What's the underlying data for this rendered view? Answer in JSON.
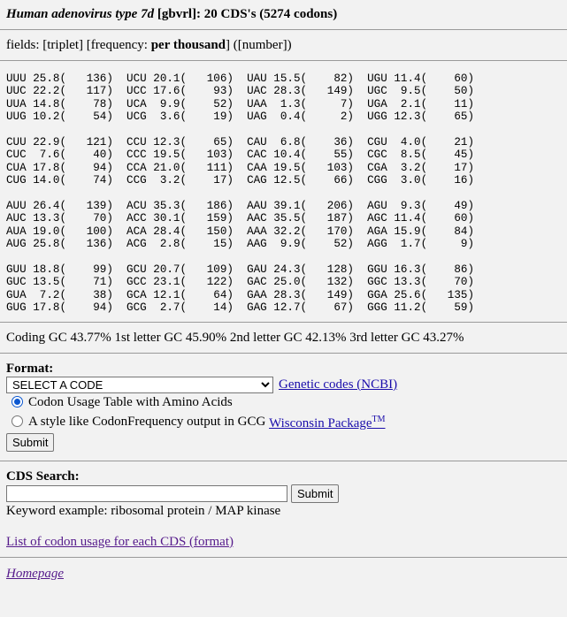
{
  "header": {
    "organism": "Human adenovirus type 7d",
    "division": "[gbvrl]",
    "summary": ": 20 CDS's (5274 codons)"
  },
  "fields": {
    "prefix": "fields: [triplet] [frequency: ",
    "bold": "per thousand",
    "suffix": "] ([number])"
  },
  "codon_table": [
    [
      "UUU 25.8(   136)  UCU 20.1(   106)  UAU 15.5(    82)  UGU 11.4(    60)",
      "UUC 22.2(   117)  UCC 17.6(    93)  UAC 28.3(   149)  UGC  9.5(    50)",
      "UUA 14.8(    78)  UCA  9.9(    52)  UAA  1.3(     7)  UGA  2.1(    11)",
      "UUG 10.2(    54)  UCG  3.6(    19)  UAG  0.4(     2)  UGG 12.3(    65)"
    ],
    [
      "CUU 22.9(   121)  CCU 12.3(    65)  CAU  6.8(    36)  CGU  4.0(    21)",
      "CUC  7.6(    40)  CCC 19.5(   103)  CAC 10.4(    55)  CGC  8.5(    45)",
      "CUA 17.8(    94)  CCA 21.0(   111)  CAA 19.5(   103)  CGA  3.2(    17)",
      "CUG 14.0(    74)  CCG  3.2(    17)  CAG 12.5(    66)  CGG  3.0(    16)"
    ],
    [
      "AUU 26.4(   139)  ACU 35.3(   186)  AAU 39.1(   206)  AGU  9.3(    49)",
      "AUC 13.3(    70)  ACC 30.1(   159)  AAC 35.5(   187)  AGC 11.4(    60)",
      "AUA 19.0(   100)  ACA 28.4(   150)  AAA 32.2(   170)  AGA 15.9(    84)",
      "AUG 25.8(   136)  ACG  2.8(    15)  AAG  9.9(    52)  AGG  1.7(     9)"
    ],
    [
      "GUU 18.8(    99)  GCU 20.7(   109)  GAU 24.3(   128)  GGU 16.3(    86)",
      "GUC 13.5(    71)  GCC 23.1(   122)  GAC 25.0(   132)  GGC 13.3(    70)",
      "GUA  7.2(    38)  GCA 12.1(    64)  GAA 28.3(   149)  GGA 25.6(   135)",
      "GUG 17.8(    94)  GCG  2.7(    14)  GAG 12.7(    67)  GGG 11.2(    59)"
    ]
  ],
  "gc_line": "Coding GC 43.77% 1st letter GC 45.90% 2nd letter GC 42.13% 3rd letter GC 43.27%",
  "format": {
    "heading": "Format:",
    "select_value": "SELECT A CODE",
    "genetic_codes_link": "Genetic codes (NCBI)",
    "radio1_label": "Codon Usage Table with Amino Acids",
    "radio2_label": "A style like CodonFrequency output in GCG ",
    "wisconsin_link": "Wisconsin Package",
    "wisconsin_tm": "TM",
    "submit_label": "Submit"
  },
  "search": {
    "heading": "CDS Search:",
    "input_value": "",
    "submit_label": "Submit",
    "keyword_example": "Keyword example: ribosomal protein / MAP kinase"
  },
  "links": {
    "list_codon_usage": "List of codon usage for each CDS (format)",
    "homepage": "Homepage"
  }
}
